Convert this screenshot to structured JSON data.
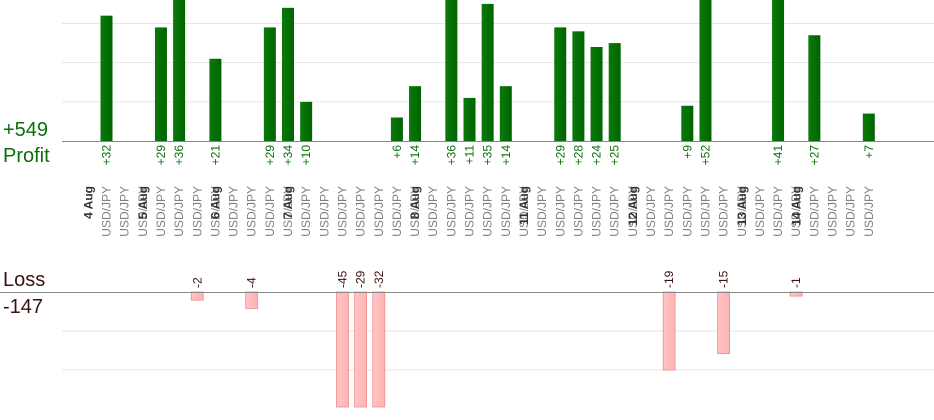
{
  "summary": {
    "profit_total": "+549",
    "profit_label": "Profit",
    "loss_label": "Loss",
    "loss_total": "-147"
  },
  "colors": {
    "profit_bar": "#006400",
    "profit_text": "#0b6e0b",
    "loss_bar": "#ffb3b3",
    "loss_text": "#3a1010",
    "pair_text": "#808080",
    "date_text": "#333333"
  },
  "chart_data": {
    "type": "bar",
    "grid": true,
    "dates": [
      {
        "label": "4 Aug",
        "slot": 0
      },
      {
        "label": "5 Aug",
        "slot": 3
      },
      {
        "label": "6 Aug",
        "slot": 7
      },
      {
        "label": "7 Aug",
        "slot": 11
      },
      {
        "label": "8 Aug",
        "slot": 18
      },
      {
        "label": "11 Aug",
        "slot": 24
      },
      {
        "label": "12 Aug",
        "slot": 30
      },
      {
        "label": "13 Aug",
        "slot": 36
      },
      {
        "label": "14 Aug",
        "slot": 39
      }
    ],
    "trades": [
      {
        "pair": "USD/JPY",
        "value": 32,
        "label": "+32"
      },
      {
        "pair": "USD/JPY",
        "value": 0,
        "label": ""
      },
      {
        "pair": "USD/JPY",
        "value": 0,
        "label": ""
      },
      {
        "pair": "USD/JPY",
        "value": 29,
        "label": "+29"
      },
      {
        "pair": "USD/JPY",
        "value": 36,
        "label": "+36"
      },
      {
        "pair": "USD/JPY",
        "value": -2,
        "label": "-2"
      },
      {
        "pair": "USD/JPY",
        "value": 21,
        "label": "+21"
      },
      {
        "pair": "USD/JPY",
        "value": 0,
        "label": ""
      },
      {
        "pair": "USD/JPY",
        "value": -4,
        "label": "-4"
      },
      {
        "pair": "USD/JPY",
        "value": 29,
        "label": "+29"
      },
      {
        "pair": "USD/JPY",
        "value": 34,
        "label": "+34"
      },
      {
        "pair": "USD/JPY",
        "value": 10,
        "label": "+10"
      },
      {
        "pair": "USD/JPY",
        "value": 0,
        "label": ""
      },
      {
        "pair": "USD/JPY",
        "value": -45,
        "label": "-45"
      },
      {
        "pair": "USD/JPY",
        "value": -29,
        "label": "-29"
      },
      {
        "pair": "USD/JPY",
        "value": -32,
        "label": "-32"
      },
      {
        "pair": "USD/JPY",
        "value": 6,
        "label": "+6"
      },
      {
        "pair": "USD/JPY",
        "value": 14,
        "label": "+14"
      },
      {
        "pair": "USD/JPY",
        "value": 0,
        "label": ""
      },
      {
        "pair": "USD/JPY",
        "value": 36,
        "label": "+36"
      },
      {
        "pair": "USD/JPY",
        "value": 11,
        "label": "+11"
      },
      {
        "pair": "USD/JPY",
        "value": 35,
        "label": "+35"
      },
      {
        "pair": "USD/JPY",
        "value": 14,
        "label": "+14"
      },
      {
        "pair": "USD/JPY",
        "value": 0,
        "label": ""
      },
      {
        "pair": "USD/JPY",
        "value": 0,
        "label": ""
      },
      {
        "pair": "USD/JPY",
        "value": 29,
        "label": "+29"
      },
      {
        "pair": "USD/JPY",
        "value": 28,
        "label": "+28"
      },
      {
        "pair": "USD/JPY",
        "value": 24,
        "label": "+24"
      },
      {
        "pair": "USD/JPY",
        "value": 25,
        "label": "+25"
      },
      {
        "pair": "USD/JPY",
        "value": 0,
        "label": ""
      },
      {
        "pair": "USD/JPY",
        "value": 0,
        "label": ""
      },
      {
        "pair": "USD/JPY",
        "value": -19,
        "label": "-19"
      },
      {
        "pair": "USD/JPY",
        "value": 9,
        "label": "+9"
      },
      {
        "pair": "USD/JPY",
        "value": 52,
        "label": "+52"
      },
      {
        "pair": "USD/JPY",
        "value": -15,
        "label": "-15"
      },
      {
        "pair": "USD/JPY",
        "value": 0,
        "label": ""
      },
      {
        "pair": "USD/JPY",
        "value": 0,
        "label": ""
      },
      {
        "pair": "USD/JPY",
        "value": 41,
        "label": "+41"
      },
      {
        "pair": "USD/JPY",
        "value": -1,
        "label": "-1"
      },
      {
        "pair": "USD/JPY",
        "value": 27,
        "label": "+27"
      },
      {
        "pair": "USD/JPY",
        "value": 0,
        "label": ""
      },
      {
        "pair": "USD/JPY",
        "value": 0,
        "label": ""
      },
      {
        "pair": "USD/JPY",
        "value": 7,
        "label": "+7"
      }
    ],
    "profit_axis": {
      "visible_max": 36,
      "gridlines": [
        0,
        10,
        20,
        30
      ]
    },
    "loss_axis": {
      "visible_min": -28,
      "gridlines": [
        0,
        -9.5,
        -19
      ]
    }
  }
}
